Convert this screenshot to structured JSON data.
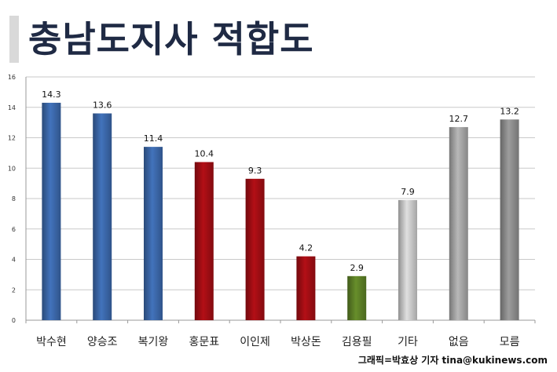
{
  "title": "충남도지사 적합도",
  "credit": "그래픽=박효상 기자 tina@kukinews.com",
  "chart_data": {
    "type": "bar",
    "categories": [
      "박수현",
      "양승조",
      "복기왕",
      "홍문표",
      "이인제",
      "박상돈",
      "김용필",
      "기타",
      "없음",
      "모름"
    ],
    "values": [
      14.3,
      13.6,
      11.4,
      10.4,
      9.3,
      4.2,
      2.9,
      7.9,
      12.7,
      13.2
    ],
    "value_labels": [
      "14.3",
      "13.6",
      "11.4",
      "10.4",
      "9.3",
      "4.2",
      "2.9",
      "7.9",
      "12.7",
      "13.2"
    ],
    "bar_colors": [
      "#3b67a8",
      "#3b67a8",
      "#3b67a8",
      "#a00d14",
      "#a00d14",
      "#a00d14",
      "#5c7f26",
      "#c8c8c8",
      "#a4a4a4",
      "#8c8c8c"
    ],
    "ylim": [
      0,
      16
    ],
    "yticks": [
      "0",
      "2",
      "4",
      "6",
      "8",
      "10",
      "12",
      "14",
      "16"
    ],
    "grid": true,
    "xlabel": "",
    "ylabel": ""
  }
}
